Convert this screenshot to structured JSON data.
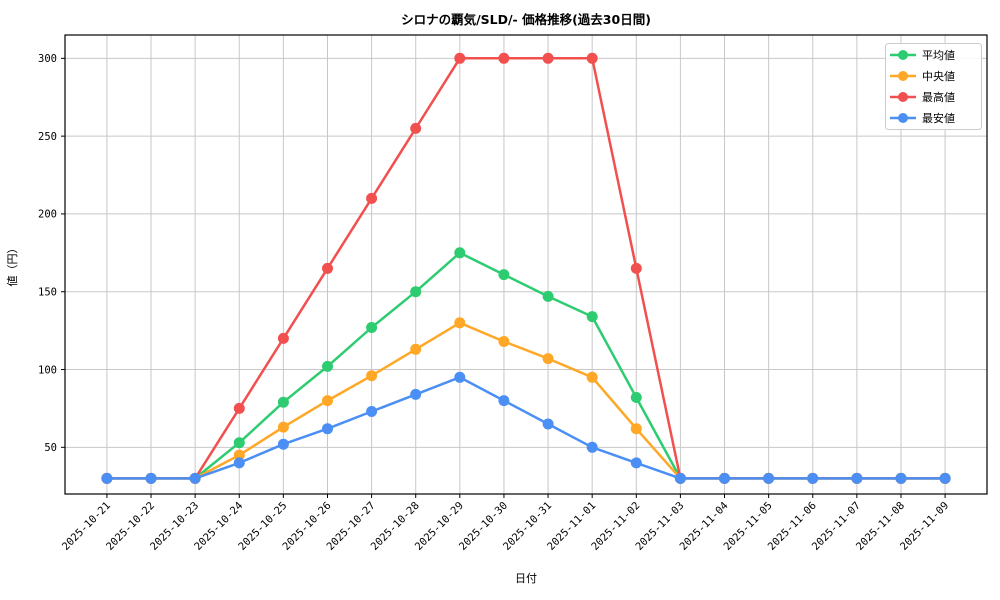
{
  "figure": {
    "title": "シロナの覇気/SLD/- 価格推移(過去30日間)",
    "xlabel": "日付",
    "ylabel": "値（円）",
    "background": "#ffffff"
  },
  "chart_data": {
    "type": "line",
    "title": "シロナの覇気/SLD/- 価格推移(過去30日間)",
    "xlabel": "日付",
    "ylabel": "値（円）",
    "x": [
      "2025-10-21",
      "2025-10-22",
      "2025-10-23",
      "2025-10-24",
      "2025-10-25",
      "2025-10-26",
      "2025-10-27",
      "2025-10-28",
      "2025-10-29",
      "2025-10-30",
      "2025-10-31",
      "2025-11-01",
      "2025-11-02",
      "2025-11-03",
      "2025-11-04",
      "2025-11-05",
      "2025-11-06",
      "2025-11-07",
      "2025-11-08",
      "2025-11-09"
    ],
    "series": [
      {
        "id": "average",
        "name": "平均値",
        "color": "#2ecc71",
        "values": [
          30,
          30,
          30,
          53,
          79,
          102,
          127,
          150,
          175,
          161,
          147,
          134,
          82,
          30,
          30,
          30,
          30,
          30,
          30,
          30
        ]
      },
      {
        "id": "median",
        "name": "中央値",
        "color": "#ffa726",
        "values": [
          30,
          30,
          30,
          45,
          63,
          80,
          96,
          113,
          130,
          118,
          107,
          95,
          62,
          30,
          30,
          30,
          30,
          30,
          30,
          30
        ]
      },
      {
        "id": "max",
        "name": "最高値",
        "color": "#f1504f",
        "values": [
          30,
          30,
          30,
          75,
          120,
          165,
          210,
          255,
          300,
          300,
          300,
          300,
          165,
          30,
          30,
          30,
          30,
          30,
          30,
          30
        ]
      },
      {
        "id": "min",
        "name": "最安値",
        "color": "#4b8ff5",
        "values": [
          30,
          30,
          30,
          40,
          52,
          62,
          73,
          84,
          95,
          80,
          65,
          50,
          40,
          30,
          30,
          30,
          30,
          30,
          30,
          30
        ]
      }
    ],
    "yticks": [
      50,
      100,
      150,
      200,
      250,
      300
    ],
    "ylim": [
      20,
      315
    ],
    "grid": true,
    "grid_color": "#c8c8c8",
    "axis_color": "#000000",
    "legend_position": "upper right",
    "legend_entries": [
      "平均値",
      "中央値",
      "最高値",
      "最安値"
    ]
  }
}
